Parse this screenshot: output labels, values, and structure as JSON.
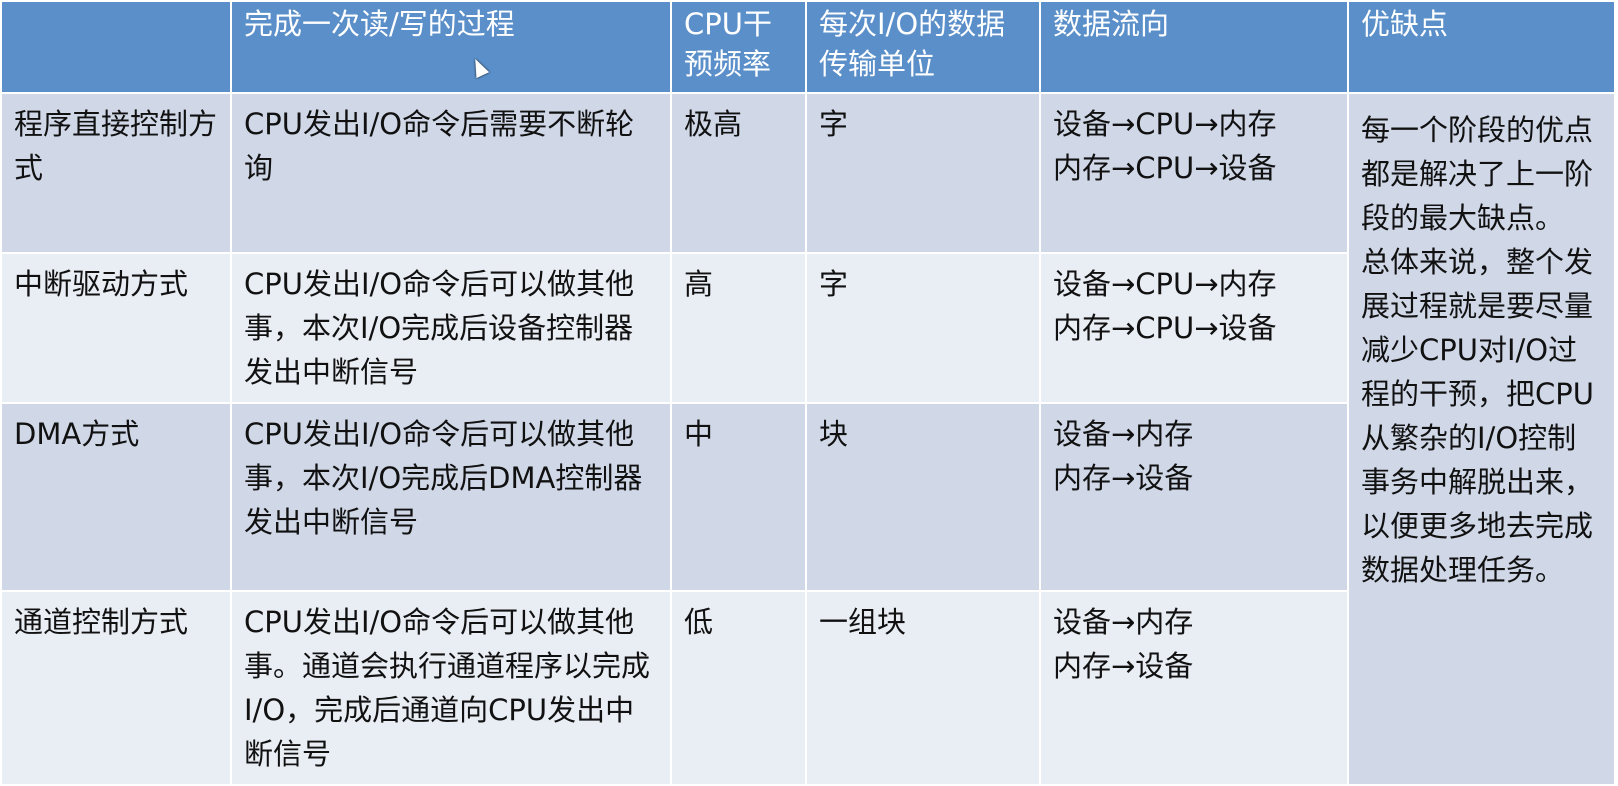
{
  "headers": [
    "",
    "完成一次读/写的过程",
    "CPU干预频率",
    "每次I/O的数据传输单位",
    "数据流向",
    "优缺点"
  ],
  "rows": [
    {
      "method": "程序直接控制方式",
      "process": "CPU发出I/O命令后需要不断轮询",
      "freq": "极高",
      "unit": "字",
      "flow1": "设备→CPU→内存",
      "flow2": "内存→CPU→设备"
    },
    {
      "method": "中断驱动方式",
      "process": "CPU发出I/O命令后可以做其他事，本次I/O完成后设备控制器发出中断信号",
      "freq": "高",
      "unit": "字",
      "flow1": "设备→CPU→内存",
      "flow2": "内存→CPU→设备"
    },
    {
      "method": "DMA方式",
      "process": "CPU发出I/O命令后可以做其他事，本次I/O完成后DMA控制器发出中断信号",
      "freq": "中",
      "unit": "块",
      "flow1": "设备→内存",
      "flow2": "内存→设备"
    },
    {
      "method": "通道控制方式",
      "process": "CPU发出I/O命令后可以做其他事。通道会执行通道程序以完成I/O，完成后通道向CPU发出中断信号",
      "freq": "低",
      "unit": "一组块",
      "flow1": "设备→内存",
      "flow2": "内存→设备"
    }
  ],
  "pros_cons": {
    "p1": "每一个阶段的优点都是解决了上一阶段的最大缺点。",
    "p2": "总体来说，整个发展过程就是要尽量减少CPU对I/O过程的干预，把CPU从繁杂的I/O控制事务中解脱出来，以便更多地去完成数据处理任务。"
  },
  "colors": {
    "header": "#5a8fc9",
    "row_dark": "#d0d8e8",
    "row_light": "#e9edf4"
  }
}
